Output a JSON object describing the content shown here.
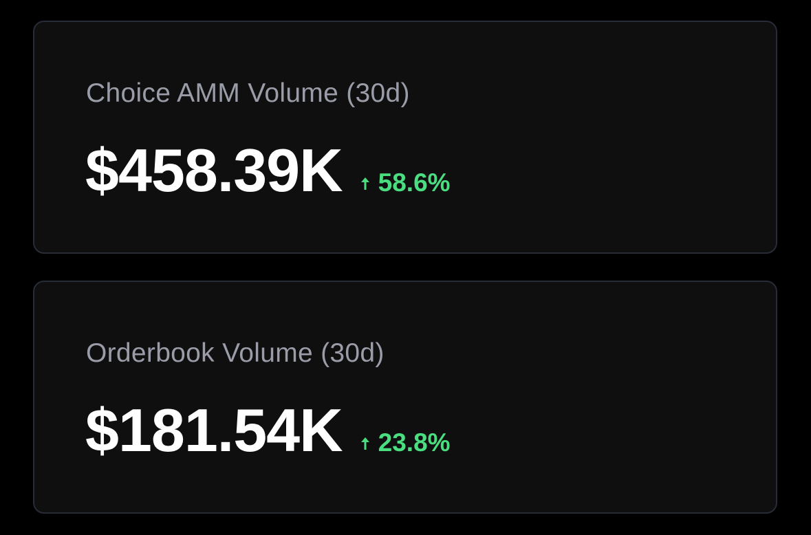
{
  "metrics": [
    {
      "label": "Choice AMM Volume (30d)",
      "value": "$458.39K",
      "change": "58.6%",
      "change_direction": "up-arrow-icon",
      "change_color": "#4ade80"
    },
    {
      "label": "Orderbook Volume (30d)",
      "value": "$181.54K",
      "change": "23.8%",
      "change_direction": "up-arrow-icon",
      "change_color": "#4ade80"
    }
  ],
  "colors": {
    "background": "#000000",
    "card_background": "#0f0f10",
    "card_border": "#272c36",
    "label_text": "#9a9da8",
    "value_text": "#ffffff",
    "positive": "#4ade80"
  }
}
